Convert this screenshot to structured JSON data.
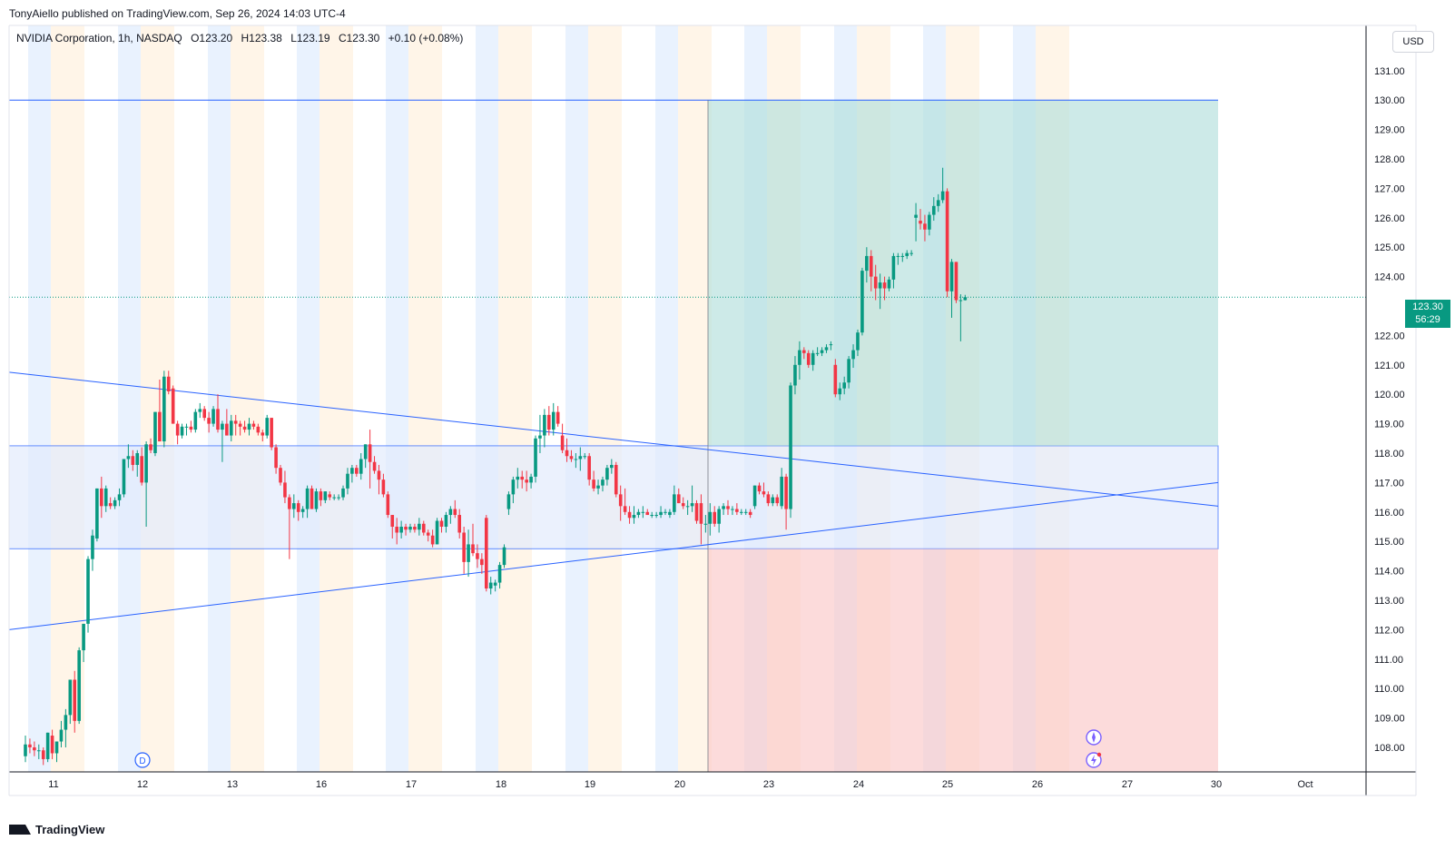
{
  "header": {
    "published_line": "TonyAiello published on TradingView.com, Sep 26, 2024 14:03 UTC-4"
  },
  "legend": {
    "symbol": "NVIDIA Corporation, 1h, NASDAQ",
    "open": "O123.20",
    "high": "H123.38",
    "low": "L123.19",
    "close": "C123.30",
    "change": "+0.10 (+0.08%)"
  },
  "axis": {
    "currency": "USD",
    "last_price": "123.30",
    "countdown": "56:29"
  },
  "footer": {
    "brand": "TradingView"
  },
  "icons": [
    "d-marker-icon",
    "compass-icon",
    "flash-icon",
    "tradingview-logo-icon"
  ],
  "colors": {
    "up": "#089981",
    "down": "#f23645",
    "trendline": "#2962ff",
    "profit_zone": "#b2dfdb",
    "loss_zone": "#fbc7c7",
    "range_box": "#e3ecfd",
    "session_blue": "#e1edfd",
    "session_orange": "#fff1e0"
  },
  "chart_data": {
    "type": "candlestick",
    "title": "",
    "xlabel": "",
    "ylabel": "",
    "ylim": [
      107.2,
      132
    ],
    "y_ticks": [
      108,
      109,
      110,
      111,
      112,
      113,
      114,
      115,
      116,
      117,
      118,
      119,
      120,
      121,
      122,
      123,
      124,
      125,
      126,
      127,
      128,
      129,
      130,
      131
    ],
    "x_tick_labels": [
      "11",
      "12",
      "13",
      "16",
      "17",
      "18",
      "19",
      "20",
      "23",
      "24",
      "25",
      "26",
      "27",
      "30",
      "Oct"
    ],
    "grid": false,
    "candles": [
      [
        107.7,
        108.4,
        107.5,
        108.1
      ],
      [
        108.1,
        108.3,
        107.8,
        108.0
      ],
      [
        108.0,
        108.2,
        107.7,
        107.9
      ],
      [
        107.9,
        108.1,
        107.6,
        107.9
      ],
      [
        107.9,
        108.0,
        107.4,
        107.6
      ],
      [
        107.6,
        108.5,
        107.5,
        108.5
      ],
      [
        108.4,
        108.6,
        107.6,
        107.8
      ],
      [
        107.8,
        108.2,
        107.5,
        108.2
      ],
      [
        108.2,
        108.9,
        108.0,
        108.6
      ],
      [
        108.6,
        109.3,
        108.0,
        109.1
      ],
      [
        109.1,
        110.3,
        108.8,
        110.3
      ],
      [
        110.3,
        110.6,
        108.5,
        108.9
      ],
      [
        108.9,
        111.4,
        108.8,
        111.3
      ],
      [
        111.3,
        112.2,
        110.9,
        112.2
      ],
      [
        112.2,
        114.5,
        111.9,
        114.4
      ],
      [
        114.4,
        115.4,
        114.0,
        115.2
      ],
      [
        115.1,
        116.8,
        115.0,
        116.8
      ],
      [
        116.8,
        117.2,
        115.8,
        116.2
      ],
      [
        116.2,
        116.9,
        116.0,
        116.8
      ],
      [
        116.3,
        116.5,
        116.1,
        116.2
      ],
      [
        116.2,
        116.5,
        116.1,
        116.4
      ],
      [
        116.4,
        116.8,
        116.2,
        116.6
      ],
      [
        116.6,
        117.8,
        116.5,
        117.8
      ],
      [
        117.8,
        118.3,
        117.5,
        117.9
      ],
      [
        117.9,
        118.1,
        117.4,
        117.6
      ],
      [
        117.6,
        118.1,
        117.2,
        118.0
      ],
      [
        117.9,
        118.2,
        116.9,
        117.0
      ],
      [
        117.0,
        118.4,
        115.5,
        118.3
      ],
      [
        118.3,
        118.5,
        118.0,
        118.1
      ],
      [
        118.0,
        119.4,
        117.9,
        119.4
      ],
      [
        119.4,
        120.5,
        118.4,
        118.4
      ],
      [
        118.4,
        120.8,
        118.2,
        120.6
      ],
      [
        120.6,
        120.8,
        120.0,
        120.1
      ],
      [
        120.2,
        120.3,
        119.0,
        119.0
      ],
      [
        119.0,
        119.1,
        118.3,
        118.6
      ],
      [
        118.6,
        119.0,
        118.5,
        118.9
      ],
      [
        118.9,
        119.0,
        118.6,
        118.9
      ],
      [
        118.9,
        119.1,
        118.7,
        118.8
      ],
      [
        118.8,
        119.5,
        118.7,
        119.4
      ],
      [
        119.4,
        119.7,
        119.2,
        119.5
      ],
      [
        119.5,
        119.6,
        119.1,
        119.2
      ],
      [
        119.2,
        119.4,
        118.7,
        119.0
      ],
      [
        119.0,
        119.6,
        118.9,
        119.5
      ],
      [
        119.5,
        120.0,
        118.7,
        118.8
      ],
      [
        118.8,
        119.1,
        117.7,
        119.0
      ],
      [
        119.0,
        119.5,
        118.6,
        118.6
      ],
      [
        118.6,
        119.3,
        118.4,
        119.1
      ],
      [
        119.1,
        119.3,
        118.6,
        119.0
      ],
      [
        119.0,
        119.1,
        118.6,
        118.9
      ],
      [
        118.9,
        119.1,
        118.7,
        118.8
      ],
      [
        118.8,
        119.2,
        118.6,
        119.0
      ],
      [
        119.0,
        119.1,
        118.8,
        118.9
      ],
      [
        118.9,
        119.0,
        118.6,
        118.7
      ],
      [
        118.7,
        118.8,
        118.4,
        118.6
      ],
      [
        118.6,
        119.3,
        118.5,
        119.2
      ],
      [
        119.2,
        119.2,
        118.1,
        118.2
      ],
      [
        118.2,
        118.3,
        117.3,
        117.5
      ],
      [
        117.5,
        117.6,
        116.9,
        117.0
      ],
      [
        117.0,
        117.4,
        116.3,
        116.5
      ],
      [
        116.5,
        116.6,
        114.4,
        116.1
      ],
      [
        116.1,
        116.6,
        115.8,
        116.3
      ],
      [
        116.3,
        116.4,
        115.7,
        116.0
      ],
      [
        116.0,
        116.2,
        115.8,
        116.1
      ],
      [
        116.1,
        116.9,
        115.8,
        116.8
      ],
      [
        116.8,
        116.9,
        116.1,
        116.1
      ],
      [
        116.1,
        116.8,
        116.0,
        116.7
      ],
      [
        116.7,
        116.8,
        116.2,
        116.4
      ],
      [
        116.4,
        116.7,
        116.3,
        116.7
      ],
      [
        116.6,
        116.7,
        116.4,
        116.5
      ],
      [
        116.5,
        116.6,
        116.4,
        116.5
      ],
      [
        116.5,
        116.6,
        116.4,
        116.5
      ],
      [
        116.5,
        116.9,
        116.4,
        116.8
      ],
      [
        116.8,
        117.5,
        116.6,
        117.3
      ],
      [
        117.3,
        117.6,
        117.0,
        117.5
      ],
      [
        117.5,
        117.6,
        117.2,
        117.3
      ],
      [
        117.3,
        118.0,
        117.1,
        117.8
      ],
      [
        117.8,
        118.3,
        117.5,
        118.3
      ],
      [
        118.3,
        118.8,
        116.8,
        117.7
      ],
      [
        117.7,
        117.9,
        117.3,
        117.4
      ],
      [
        117.4,
        117.6,
        116.6,
        117.1
      ],
      [
        117.1,
        117.3,
        116.5,
        116.6
      ],
      [
        116.6,
        116.7,
        115.8,
        115.9
      ],
      [
        115.9,
        115.9,
        115.1,
        115.5
      ],
      [
        115.5,
        115.8,
        114.9,
        115.3
      ],
      [
        115.3,
        115.7,
        115.1,
        115.5
      ],
      [
        115.5,
        115.6,
        115.2,
        115.4
      ],
      [
        115.4,
        115.6,
        115.3,
        115.5
      ],
      [
        115.5,
        115.6,
        115.3,
        115.4
      ],
      [
        115.4,
        115.8,
        115.2,
        115.6
      ],
      [
        115.6,
        115.7,
        115.2,
        115.3
      ],
      [
        115.3,
        115.4,
        115.0,
        115.2
      ],
      [
        115.2,
        115.4,
        114.8,
        114.9
      ],
      [
        114.9,
        115.8,
        114.9,
        115.7
      ],
      [
        115.7,
        115.8,
        115.3,
        115.5
      ],
      [
        115.5,
        116.0,
        115.3,
        115.9
      ],
      [
        115.9,
        116.2,
        115.6,
        116.1
      ],
      [
        116.1,
        116.4,
        115.8,
        115.9
      ],
      [
        115.9,
        116.1,
        115.1,
        115.3
      ],
      [
        115.3,
        115.5,
        113.9,
        114.3
      ],
      [
        114.3,
        115.4,
        113.8,
        114.9
      ],
      [
        114.9,
        115.6,
        114.5,
        114.6
      ],
      [
        114.6,
        114.9,
        114.1,
        114.4
      ],
      [
        114.4,
        114.6,
        113.9,
        114.2
      ],
      [
        115.8,
        115.9,
        113.3,
        113.4
      ],
      [
        113.4,
        113.8,
        113.2,
        113.6
      ],
      [
        113.5,
        113.7,
        113.3,
        113.6
      ],
      [
        113.6,
        114.3,
        113.4,
        114.2
      ],
      [
        114.2,
        114.9,
        114.1,
        114.8
      ],
      [
        116.1,
        116.7,
        115.9,
        116.6
      ],
      [
        116.6,
        117.2,
        116.3,
        117.1
      ],
      [
        117.1,
        117.5,
        116.8,
        117.2
      ],
      [
        117.2,
        117.4,
        116.8,
        117.1
      ],
      [
        117.1,
        117.4,
        116.7,
        117.0
      ],
      [
        117.0,
        117.3,
        116.8,
        117.2
      ],
      [
        117.2,
        118.6,
        117.0,
        118.5
      ],
      [
        118.5,
        119.3,
        118.0,
        118.6
      ],
      [
        118.6,
        119.5,
        118.2,
        119.3
      ],
      [
        119.3,
        119.6,
        118.6,
        118.8
      ],
      [
        118.8,
        119.7,
        118.6,
        119.4
      ],
      [
        119.4,
        119.6,
        118.9,
        119.0
      ],
      [
        118.6,
        119.0,
        118.0,
        118.1
      ],
      [
        118.1,
        118.5,
        117.7,
        117.9
      ],
      [
        117.9,
        118.1,
        117.7,
        117.8
      ],
      [
        117.8,
        118.0,
        117.5,
        117.8
      ],
      [
        117.8,
        118.2,
        117.4,
        117.9
      ],
      [
        117.9,
        118.0,
        117.8,
        117.9
      ],
      [
        117.9,
        118.0,
        116.9,
        117.1
      ],
      [
        117.1,
        117.4,
        116.7,
        116.8
      ],
      [
        116.8,
        117.1,
        116.6,
        116.9
      ],
      [
        116.9,
        117.2,
        116.7,
        117.1
      ],
      [
        117.1,
        117.6,
        116.9,
        117.5
      ],
      [
        117.5,
        117.8,
        117.3,
        117.6
      ],
      [
        117.6,
        117.7,
        116.5,
        116.6
      ],
      [
        116.6,
        116.9,
        115.7,
        116.2
      ],
      [
        116.2,
        116.8,
        115.9,
        116.0
      ],
      [
        116.0,
        116.2,
        115.6,
        115.8
      ],
      [
        115.8,
        116.2,
        115.6,
        115.9
      ],
      [
        115.9,
        116.1,
        115.8,
        116.0
      ],
      [
        116.0,
        116.2,
        115.8,
        116.0
      ],
      [
        116.0,
        116.1,
        115.9,
        115.9
      ],
      [
        115.9,
        116.0,
        115.8,
        115.9
      ],
      [
        115.9,
        116.0,
        115.8,
        115.9
      ],
      [
        115.9,
        116.2,
        115.8,
        116.0
      ],
      [
        116.0,
        116.1,
        115.9,
        116.0
      ],
      [
        115.9,
        116.1,
        115.8,
        116.0
      ],
      [
        116.0,
        116.9,
        115.9,
        116.6
      ],
      [
        116.6,
        116.8,
        116.3,
        116.3
      ],
      [
        116.3,
        116.5,
        116.1,
        116.2
      ],
      [
        116.2,
        116.4,
        115.9,
        116.2
      ],
      [
        116.2,
        116.9,
        116.0,
        116.3
      ],
      [
        116.3,
        116.4,
        115.6,
        115.7
      ],
      [
        116.3,
        116.6,
        114.9,
        115.6
      ],
      [
        115.6,
        115.9,
        115.3,
        115.6
      ],
      [
        115.6,
        116.3,
        115.2,
        116.0
      ],
      [
        116.0,
        116.2,
        115.5,
        115.6
      ],
      [
        115.6,
        116.2,
        115.3,
        116.1
      ],
      [
        116.1,
        116.3,
        115.9,
        116.2
      ],
      [
        116.2,
        116.4,
        115.9,
        116.1
      ],
      [
        116.1,
        116.2,
        115.9,
        116.1
      ],
      [
        116.1,
        116.3,
        115.9,
        116.0
      ],
      [
        116.0,
        116.1,
        115.9,
        116.0
      ],
      [
        116.0,
        116.1,
        115.9,
        116.0
      ],
      [
        116.0,
        116.1,
        115.8,
        115.9
      ],
      [
        116.2,
        116.9,
        116.1,
        116.9
      ],
      [
        116.9,
        117.0,
        116.6,
        116.7
      ],
      [
        116.7,
        117.0,
        116.5,
        116.6
      ],
      [
        116.6,
        116.7,
        116.2,
        116.3
      ],
      [
        116.3,
        116.6,
        116.2,
        116.5
      ],
      [
        116.5,
        116.6,
        116.2,
        116.3
      ],
      [
        116.2,
        117.5,
        116.1,
        117.2
      ],
      [
        117.2,
        117.3,
        115.4,
        116.1
      ],
      [
        116.1,
        120.4,
        115.8,
        120.3
      ],
      [
        120.3,
        121.3,
        120.0,
        121.0
      ],
      [
        121.0,
        121.8,
        120.5,
        121.5
      ],
      [
        121.5,
        121.6,
        121.2,
        121.4
      ],
      [
        121.4,
        121.5,
        120.9,
        121.0
      ],
      [
        121.0,
        121.5,
        120.8,
        121.4
      ],
      [
        121.4,
        121.6,
        121.3,
        121.4
      ],
      [
        121.4,
        121.6,
        121.3,
        121.5
      ],
      [
        121.5,
        121.7,
        121.4,
        121.6
      ],
      [
        121.7,
        121.8,
        121.5,
        121.7
      ],
      [
        121.0,
        121.2,
        119.9,
        120.0
      ],
      [
        120.0,
        120.4,
        119.8,
        120.2
      ],
      [
        120.2,
        120.6,
        120.0,
        120.4
      ],
      [
        120.4,
        121.3,
        120.2,
        121.2
      ],
      [
        121.2,
        121.7,
        120.9,
        121.5
      ],
      [
        121.5,
        122.2,
        121.3,
        122.1
      ],
      [
        122.1,
        124.3,
        122.0,
        124.2
      ],
      [
        124.2,
        125.0,
        123.8,
        124.7
      ],
      [
        124.7,
        124.9,
        123.5,
        124.0
      ],
      [
        124.0,
        124.4,
        123.2,
        123.6
      ],
      [
        123.6,
        124.1,
        122.9,
        123.8
      ],
      [
        123.8,
        124.0,
        123.2,
        123.6
      ],
      [
        123.6,
        124.0,
        123.5,
        123.9
      ],
      [
        123.9,
        124.8,
        123.6,
        124.7
      ],
      [
        124.7,
        124.8,
        124.4,
        124.7
      ],
      [
        124.7,
        124.8,
        124.5,
        124.7
      ],
      [
        124.7,
        124.9,
        124.6,
        124.8
      ],
      [
        124.8,
        124.9,
        124.7,
        124.8
      ],
      [
        126.0,
        126.5,
        125.2,
        126.1
      ],
      [
        125.9,
        126.3,
        125.6,
        125.8
      ],
      [
        125.8,
        126.1,
        125.2,
        125.6
      ],
      [
        125.6,
        126.2,
        125.4,
        126.1
      ],
      [
        126.1,
        126.7,
        125.9,
        126.4
      ],
      [
        126.4,
        126.8,
        126.2,
        126.6
      ],
      [
        126.6,
        127.7,
        126.5,
        126.9
      ],
      [
        126.9,
        127.0,
        123.3,
        123.5
      ],
      [
        123.5,
        124.6,
        122.6,
        124.5
      ],
      [
        124.5,
        124.5,
        123.1,
        123.2
      ],
      [
        123.2,
        123.4,
        121.8,
        123.2
      ],
      [
        123.2,
        123.38,
        123.19,
        123.3
      ]
    ],
    "zones": {
      "range_box": [
        114.75,
        118.25
      ],
      "profit_zone": [
        118.25,
        130.0
      ],
      "loss_zone": [
        107.2,
        114.75
      ]
    },
    "trendlines": [
      {
        "name": "",
        "from": [
          0,
          120.75
        ],
        "to": [
          270,
          116.2
        ]
      },
      {
        "name": "",
        "from": [
          0,
          112.0
        ],
        "to": [
          270,
          117.0
        ]
      }
    ]
  }
}
